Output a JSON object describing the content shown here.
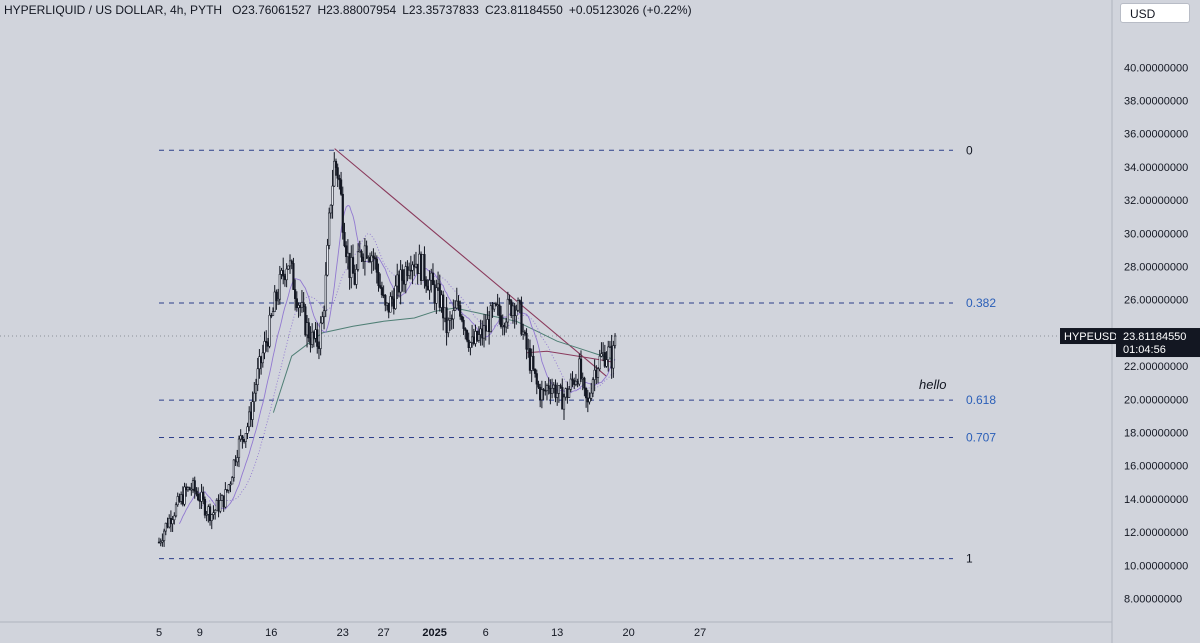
{
  "header": {
    "symbol": "HYPERLIQUID / US DOLLAR, 4h, PYTH",
    "open": "O23.76061527",
    "high": "H23.88007954",
    "low": "L23.35737833",
    "close": "C23.81184550",
    "change": "+0.05123026 (+0.22%)"
  },
  "currency_button": "USD",
  "price_tag": {
    "symbol": "HYPEUSD",
    "price": "23.81184550",
    "countdown": "01:04:56"
  },
  "colors": {
    "background": "#d1d4dc",
    "fib_dash": "#2c3e8a",
    "fib_label_blue": "#2b5fb8",
    "trendline": "#8a3a5c",
    "ma_green": "#4f7f75",
    "ma_purple": "#8b6fcf",
    "candle": "#131722"
  },
  "annotation": "hello",
  "chart_data": {
    "type": "candlestick",
    "y_axis": {
      "min": 7,
      "max": 42,
      "ticks": [
        "40.00000000",
        "38.00000000",
        "36.00000000",
        "34.00000000",
        "32.00000000",
        "30.00000000",
        "28.00000000",
        "26.00000000",
        "24.00000000",
        "22.00000000",
        "20.00000000",
        "18.00000000",
        "16.00000000",
        "14.00000000",
        "12.00000000",
        "10.00000000",
        "8.00000000"
      ],
      "tick_values": [
        40,
        38,
        36,
        34,
        32,
        30,
        28,
        26,
        24,
        22,
        20,
        18,
        16,
        14,
        12,
        10,
        8
      ]
    },
    "x_axis": {
      "labels": [
        "5",
        "9",
        "16",
        "23",
        "27",
        "2025",
        "6",
        "13",
        "20",
        "27"
      ],
      "label_days": [
        0,
        4,
        11,
        18,
        22,
        27,
        32,
        39,
        46,
        53
      ]
    },
    "last_price": 23.8118455,
    "fib_levels": [
      {
        "label": "0",
        "price": 35.0
      },
      {
        "label": "0.382",
        "price": 25.8
      },
      {
        "label": "0.618",
        "price": 19.95
      },
      {
        "label": "0.707",
        "price": 17.7
      },
      {
        "label": "1",
        "price": 10.4
      }
    ],
    "trendline": {
      "from": [
        17.2,
        35.1
      ],
      "to": [
        43.8,
        21.4
      ]
    },
    "price_path": [
      [
        0.0,
        11.4
      ],
      [
        0.6,
        12.3
      ],
      [
        1.2,
        13.0
      ],
      [
        2.0,
        13.8
      ],
      [
        2.6,
        14.4
      ],
      [
        3.2,
        14.7
      ],
      [
        4.0,
        14.1
      ],
      [
        4.6,
        13.4
      ],
      [
        5.2,
        13.1
      ],
      [
        5.8,
        13.6
      ],
      [
        6.4,
        14.0
      ],
      [
        7.0,
        15.2
      ],
      [
        7.6,
        17.0
      ],
      [
        8.2,
        17.8
      ],
      [
        8.8,
        18.6
      ],
      [
        9.5,
        21.0
      ],
      [
        10.2,
        22.8
      ],
      [
        10.8,
        24.2
      ],
      [
        11.4,
        25.9
      ],
      [
        12.0,
        27.2
      ],
      [
        12.6,
        28.5
      ],
      [
        13.2,
        27.0
      ],
      [
        13.8,
        25.6
      ],
      [
        14.4,
        24.4
      ],
      [
        15.0,
        23.6
      ],
      [
        15.6,
        23.4
      ],
      [
        16.0,
        24.8
      ],
      [
        16.4,
        27.5
      ],
      [
        16.8,
        32.0
      ],
      [
        17.2,
        34.3
      ],
      [
        17.6,
        33.5
      ],
      [
        18.0,
        31.0
      ],
      [
        18.6,
        28.0
      ],
      [
        19.2,
        27.2
      ],
      [
        19.8,
        29.0
      ],
      [
        20.4,
        29.3
      ],
      [
        21.0,
        28.6
      ],
      [
        21.6,
        27.0
      ],
      [
        22.2,
        25.2
      ],
      [
        22.8,
        26.0
      ],
      [
        23.4,
        26.8
      ],
      [
        24.0,
        27.5
      ],
      [
        24.6,
        28.7
      ],
      [
        25.2,
        28.3
      ],
      [
        25.8,
        27.9
      ],
      [
        26.4,
        27.2
      ],
      [
        27.0,
        26.4
      ],
      [
        27.6,
        26.0
      ],
      [
        28.2,
        24.2
      ],
      [
        28.8,
        24.9
      ],
      [
        29.4,
        25.8
      ],
      [
        30.0,
        24.4
      ],
      [
        30.6,
        23.2
      ],
      [
        31.2,
        23.6
      ],
      [
        31.8,
        24.0
      ],
      [
        32.4,
        24.8
      ],
      [
        33.0,
        25.2
      ],
      [
        33.6,
        25.0
      ],
      [
        34.2,
        25.4
      ],
      [
        34.8,
        25.9
      ],
      [
        35.4,
        25.0
      ],
      [
        35.8,
        23.4
      ],
      [
        36.4,
        22.2
      ],
      [
        37.0,
        20.8
      ],
      [
        37.6,
        20.2
      ],
      [
        38.2,
        21.0
      ],
      [
        38.8,
        20.6
      ],
      [
        39.4,
        20.0
      ],
      [
        40.0,
        20.4
      ],
      [
        40.6,
        21.2
      ],
      [
        41.2,
        21.8
      ],
      [
        41.6,
        20.2
      ],
      [
        42.0,
        19.6
      ],
      [
        42.4,
        21.2
      ],
      [
        42.8,
        22.0
      ],
      [
        43.4,
        22.6
      ],
      [
        44.0,
        22.8
      ],
      [
        44.4,
        22.4
      ],
      [
        44.8,
        23.81
      ]
    ],
    "moving_averages": [
      {
        "name": "",
        "color": "#4f7f75",
        "points": [
          [
            11.2,
            19.2
          ],
          [
            13.0,
            22.6
          ],
          [
            16.0,
            24.0
          ],
          [
            19.0,
            24.4
          ],
          [
            22.0,
            24.7
          ],
          [
            25.0,
            24.9
          ],
          [
            27.0,
            25.3
          ],
          [
            29.0,
            25.5
          ],
          [
            32.0,
            25.1
          ],
          [
            35.0,
            24.7
          ],
          [
            37.0,
            24.1
          ],
          [
            39.0,
            23.5
          ],
          [
            41.0,
            23.1
          ],
          [
            43.0,
            22.7
          ],
          [
            44.6,
            22.4
          ]
        ]
      },
      {
        "name": "",
        "color": "#8a3a5c",
        "points": [
          [
            36.0,
            22.8
          ],
          [
            38.0,
            22.9
          ],
          [
            40.0,
            22.7
          ],
          [
            42.0,
            22.5
          ],
          [
            44.0,
            22.3
          ],
          [
            44.6,
            22.2
          ]
        ]
      }
    ]
  }
}
